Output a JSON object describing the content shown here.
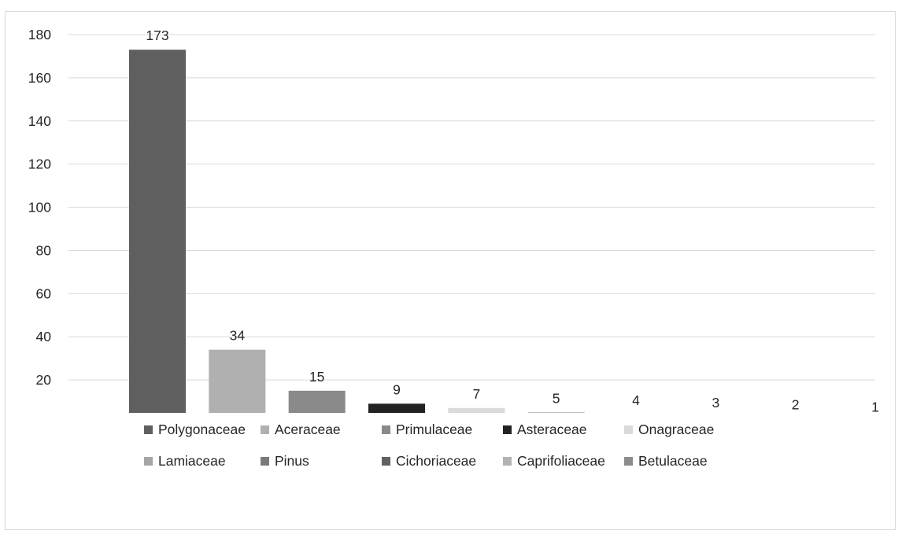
{
  "chart_data": {
    "type": "bar",
    "title": "",
    "xlabel": "",
    "ylabel": "",
    "ylim": [
      0,
      180
    ],
    "yticks": [
      0,
      20,
      40,
      60,
      80,
      100,
      120,
      140,
      160,
      180
    ],
    "grid": true,
    "legend_position": "bottom",
    "series": [
      {
        "name": "Polygonaceae",
        "value": 173,
        "color": "#5f5f5f"
      },
      {
        "name": "Aceraceae",
        "value": 34,
        "color": "#b0b0b0"
      },
      {
        "name": "Primulaceae",
        "value": 15,
        "color": "#8a8a8a"
      },
      {
        "name": "Asteraceae",
        "value": 9,
        "color": "#222222"
      },
      {
        "name": "Onagraceae",
        "value": 7,
        "color": "#dadada"
      },
      {
        "name": "Lamiaceae",
        "value": 5,
        "color": "#a6a6a6"
      },
      {
        "name": "Pinus",
        "value": 4,
        "color": "#7a7a7a"
      },
      {
        "name": "Cichoriaceae",
        "value": 3,
        "color": "#616161"
      },
      {
        "name": "Caprifoliaceae",
        "value": 2,
        "color": "#b2b2b2"
      },
      {
        "name": "Betulaceae",
        "value": 1,
        "color": "#8c8c8c"
      }
    ]
  }
}
